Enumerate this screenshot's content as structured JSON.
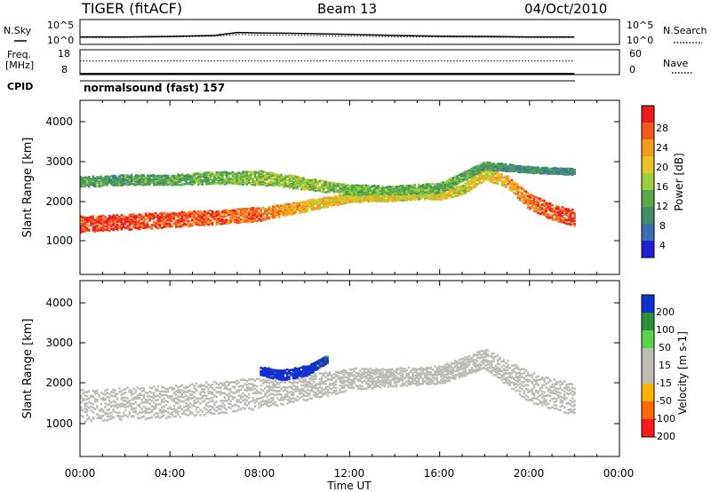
{
  "header": {
    "title": "TIGER (fitACF)",
    "beam": "Beam 13",
    "date": "04/Oct/2010"
  },
  "noise_panel": {
    "left_label": "N.Sky",
    "right_label": "N.Search",
    "left_ticks": [
      "10^5",
      "10^0"
    ],
    "right_ticks": [
      "10^5",
      "10^0"
    ]
  },
  "freq_panel": {
    "left_label_1": "Freq.",
    "left_label_2": "[MHz]",
    "right_label": "Nave",
    "left_ticks": [
      "18",
      "8"
    ],
    "right_ticks": [
      "60",
      "0"
    ]
  },
  "cpid": {
    "label": "CPID",
    "program": "normalsound (fast) 157"
  },
  "x_axis": {
    "label": "Time UT",
    "ticks": [
      "00:00",
      "04:00",
      "08:00",
      "12:00",
      "16:00",
      "20:00",
      "00:00"
    ]
  },
  "power_panel": {
    "ylabel": "Slant Range [km]",
    "yticks": [
      "1000",
      "2000",
      "3000",
      "4000"
    ],
    "colorbar_label": "Power [dB]",
    "colorbar_ticks": [
      "4",
      "8",
      "12",
      "16",
      "20",
      "24",
      "28"
    ]
  },
  "velocity_panel": {
    "ylabel": "Slant Range [km]",
    "yticks": [
      "1000",
      "2000",
      "3000",
      "4000"
    ],
    "colorbar_label": "Velocity [m s-1]",
    "colorbar_ticks": [
      "200",
      "100",
      "50",
      "15",
      "-15",
      "-50",
      "-100",
      "-200"
    ]
  },
  "chart_data": [
    {
      "type": "line",
      "title": "N.Sky / N.Search",
      "x_range_hours": [
        0,
        24
      ],
      "series": [
        {
          "name": "N.Sky",
          "x": [
            0,
            2,
            4,
            6,
            7,
            8,
            9,
            10,
            12,
            14,
            16,
            18,
            20,
            22
          ],
          "y": [
            0.3,
            0.3,
            0.32,
            0.36,
            0.48,
            0.46,
            0.45,
            0.44,
            0.4,
            0.36,
            0.33,
            0.32,
            0.3,
            0.3
          ]
        },
        {
          "name": "N.Search",
          "x": [
            0,
            2,
            4,
            6,
            7,
            8,
            9,
            10,
            12,
            14,
            16,
            18,
            20,
            22
          ],
          "y": [
            0.28,
            0.28,
            0.3,
            0.33,
            0.4,
            0.38,
            0.37,
            0.36,
            0.33,
            0.31,
            0.3,
            0.29,
            0.28,
            0.28
          ]
        }
      ]
    },
    {
      "type": "line",
      "title": "Freq / Nave",
      "x_range_hours": [
        0,
        24
      ],
      "series": [
        {
          "name": "Freq.",
          "x": [
            0,
            22
          ],
          "y": [
            8.4,
            8.4
          ]
        },
        {
          "name": "Nave",
          "x": [
            0,
            22
          ],
          "y": [
            33,
            33
          ]
        }
      ]
    },
    {
      "type": "heatmap",
      "title": "Power [dB]",
      "x_range_hours": [
        0,
        24
      ],
      "y_range_km": [
        180,
        4500
      ],
      "colorbar_range_db": [
        0,
        30
      ],
      "bands": [
        {
          "x": [
            0,
            2,
            4,
            6,
            8,
            9,
            10,
            11,
            12,
            14,
            15,
            16,
            17,
            18,
            19,
            20,
            21,
            22
          ],
          "y": [
            1450,
            1500,
            1560,
            1620,
            1700,
            1800,
            1900,
            2000,
            2100,
            2130,
            2170,
            2180,
            2300,
            2700,
            2500,
            2000,
            1750,
            1600
          ],
          "thickness_km": [
            400,
            380,
            380,
            350,
            350,
            300,
            280,
            250,
            200,
            200,
            200,
            250,
            250,
            300,
            300,
            400,
            400,
            400
          ],
          "power_db": [
            26,
            27,
            26,
            25,
            24,
            22,
            20,
            19,
            18,
            17,
            17,
            18,
            16,
            18,
            20,
            24,
            26,
            27
          ]
        },
        {
          "x": [
            0,
            2,
            4,
            6,
            8,
            10,
            12,
            14,
            16,
            18,
            20,
            22
          ],
          "y": [
            2500,
            2550,
            2550,
            2600,
            2600,
            2450,
            2300,
            2300,
            2350,
            2900,
            2800,
            2750
          ],
          "thickness_km": [
            250,
            250,
            250,
            300,
            350,
            300,
            250,
            200,
            250,
            200,
            150,
            150
          ],
          "power_db": [
            10,
            10,
            11,
            12,
            14,
            14,
            13,
            12,
            12,
            10,
            8,
            8
          ]
        }
      ]
    },
    {
      "type": "heatmap",
      "title": "Velocity [m s-1]",
      "x_range_hours": [
        0,
        24
      ],
      "y_range_km": [
        180,
        4500
      ],
      "colorbar_range_ms": [
        -200,
        200
      ],
      "bands": [
        {
          "x": [
            0,
            2,
            4,
            6,
            8,
            10,
            12,
            14,
            16,
            18,
            20,
            22
          ],
          "y": [
            1450,
            1500,
            1550,
            1650,
            1750,
            1900,
            2100,
            2150,
            2200,
            2600,
            1900,
            1600
          ],
          "thickness_km": [
            800,
            800,
            800,
            800,
            750,
            650,
            550,
            450,
            450,
            500,
            750,
            800
          ],
          "velocity_ms": [
            -10,
            -10,
            -5,
            0,
            0,
            -5,
            0,
            5,
            0,
            10,
            -5,
            -5
          ]
        },
        {
          "x": [
            8,
            9,
            10,
            11
          ],
          "y": [
            2300,
            2200,
            2300,
            2600
          ],
          "thickness_km": [
            200,
            250,
            250,
            200
          ],
          "velocity_ms": [
            200,
            220,
            180,
            150
          ]
        }
      ]
    }
  ]
}
